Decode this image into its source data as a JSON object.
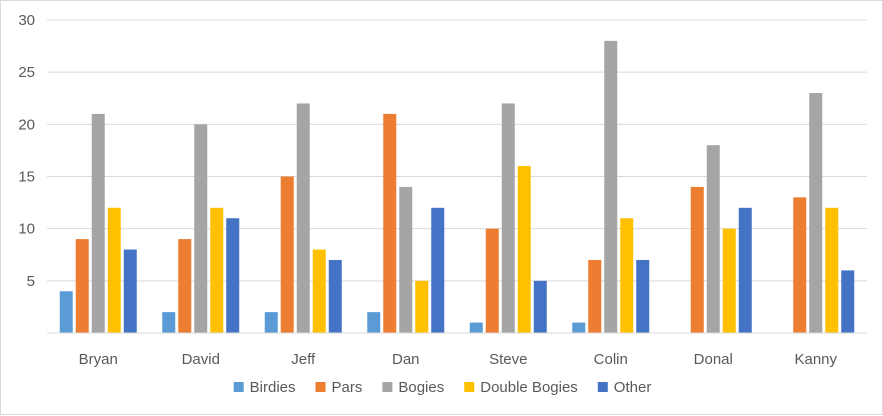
{
  "chart_data": {
    "type": "bar",
    "categories": [
      "Bryan",
      "David",
      "Jeff",
      "Dan",
      "Steve",
      "Colin",
      "Donal",
      "Kanny"
    ],
    "series": [
      {
        "name": "Birdies",
        "color": "#5b9bd5",
        "values": [
          4,
          2,
          2,
          2,
          1,
          1,
          0,
          0
        ]
      },
      {
        "name": "Pars",
        "color": "#ed7d31",
        "values": [
          9,
          9,
          15,
          21,
          10,
          7,
          14,
          13
        ]
      },
      {
        "name": "Bogies",
        "color": "#a5a5a5",
        "values": [
          21,
          20,
          22,
          14,
          22,
          28,
          18,
          23
        ]
      },
      {
        "name": "Double Bogies",
        "color": "#ffc000",
        "values": [
          12,
          12,
          8,
          5,
          16,
          11,
          10,
          12
        ]
      },
      {
        "name": "Other",
        "color": "#4472c4",
        "values": [
          8,
          11,
          7,
          12,
          5,
          7,
          12,
          6
        ]
      }
    ],
    "y_ticks": [
      "5",
      "10",
      "15",
      "20",
      "25",
      "30"
    ],
    "ylim": [
      0,
      30
    ],
    "grid": true,
    "legend_position": "bottom"
  }
}
